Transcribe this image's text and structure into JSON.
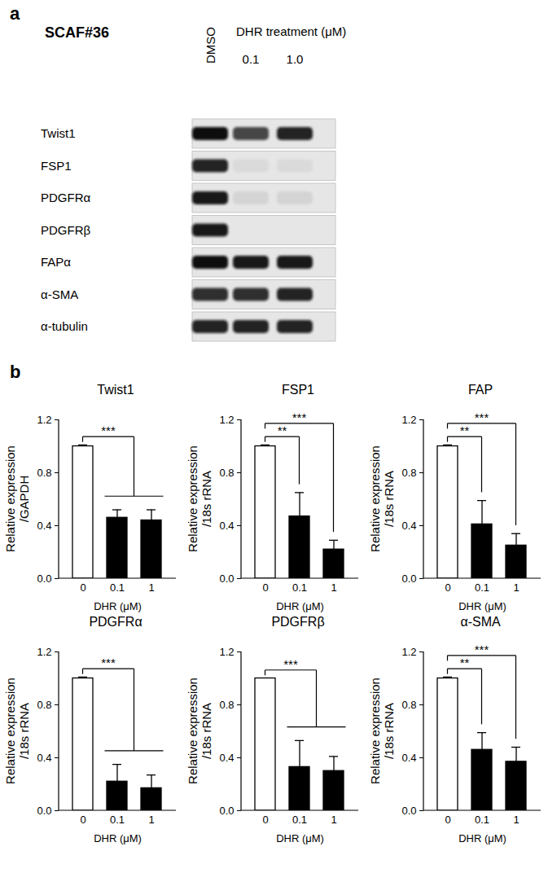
{
  "panel_a": {
    "label": "a",
    "title": "SCAF#36",
    "control_lane": "DMSO",
    "treatment_label": "DHR treatment (μM)",
    "treatment_lanes": [
      "0.1",
      "1.0"
    ],
    "rows": [
      {
        "label": "Twist1",
        "bands": [
          1.0,
          0.75,
          0.9
        ]
      },
      {
        "label": "FSP1",
        "bands": [
          0.9,
          0.05,
          0.05
        ]
      },
      {
        "label": "PDGFRα",
        "bands": [
          0.95,
          0.08,
          0.08
        ]
      },
      {
        "label": "PDGFRβ",
        "bands": [
          0.95,
          0.0,
          0.0
        ]
      },
      {
        "label": "FAPα",
        "bands": [
          1.0,
          0.95,
          0.95
        ]
      },
      {
        "label": "α-SMA",
        "bands": [
          0.85,
          0.85,
          0.9
        ]
      },
      {
        "label": "α-tubulin",
        "bands": [
          0.9,
          0.9,
          0.9
        ]
      }
    ]
  },
  "panel_b": {
    "label": "b"
  },
  "chart_data": [
    {
      "type": "bar",
      "title": "Twist1",
      "ylabel": [
        "Relative expression",
        "/GAPDH"
      ],
      "xlabel": "DHR (μM)",
      "categories": [
        "0",
        "0.1",
        "1"
      ],
      "values": [
        1.0,
        0.46,
        0.44
      ],
      "errors": [
        0.01,
        0.06,
        0.08
      ],
      "colors": [
        "#ffffff",
        "#000000",
        "#000000"
      ],
      "ylim": [
        0,
        1.2
      ],
      "yticks": [
        {
          "value": 0,
          "label": "0.0"
        },
        0.4,
        0.8,
        1.2
      ],
      "significance": [
        {
          "from": "0",
          "to": [
            "0.1",
            "1"
          ],
          "label": "***"
        }
      ]
    },
    {
      "type": "bar",
      "title": "FSP1",
      "ylabel": [
        "Relative expression",
        "/18s rRNA"
      ],
      "xlabel": "DHR (μM)",
      "categories": [
        "0",
        "0.1",
        "1"
      ],
      "values": [
        1.0,
        0.47,
        0.22
      ],
      "errors": [
        0.01,
        0.18,
        0.07
      ],
      "colors": [
        "#ffffff",
        "#000000",
        "#000000"
      ],
      "ylim": [
        0,
        1.2
      ],
      "yticks": [
        {
          "value": 0,
          "label": "0.0"
        },
        0.4,
        0.8,
        1.2
      ],
      "significance": [
        {
          "from": "0",
          "to": [
            "0.1"
          ],
          "label": "**"
        },
        {
          "from": "0",
          "to": [
            "1"
          ],
          "label": "***"
        }
      ]
    },
    {
      "type": "bar",
      "title": "FAP",
      "ylabel": [
        "Relative expression",
        "/18s rRNA"
      ],
      "xlabel": "DHR (μM)",
      "categories": [
        "0",
        "0.1",
        "1"
      ],
      "values": [
        1.0,
        0.41,
        0.25
      ],
      "errors": [
        0.01,
        0.18,
        0.09
      ],
      "colors": [
        "#ffffff",
        "#000000",
        "#000000"
      ],
      "ylim": [
        0,
        1.2
      ],
      "yticks": [
        {
          "value": 0,
          "label": "0.0"
        },
        0.4,
        0.8,
        1.2
      ],
      "significance": [
        {
          "from": "0",
          "to": [
            "0.1"
          ],
          "label": "**"
        },
        {
          "from": "0",
          "to": [
            "1"
          ],
          "label": "***"
        }
      ]
    },
    {
      "type": "bar",
      "title": "PDGFRα",
      "ylabel": [
        "Relative expression",
        "/18s rRNA"
      ],
      "xlabel": "DHR (μM)",
      "categories": [
        "0",
        "0.1",
        "1"
      ],
      "values": [
        1.0,
        0.22,
        0.17
      ],
      "errors": [
        0.01,
        0.13,
        0.1
      ],
      "colors": [
        "#ffffff",
        "#000000",
        "#000000"
      ],
      "ylim": [
        0,
        1.2
      ],
      "yticks": [
        {
          "value": 0,
          "label": "0.0"
        },
        0.4,
        0.8,
        1.2
      ],
      "significance": [
        {
          "from": "0",
          "to": [
            "0.1",
            "1"
          ],
          "label": "***"
        }
      ]
    },
    {
      "type": "bar",
      "title": "PDGFRβ",
      "ylabel": [
        "Relative expression",
        "/18s rRNA"
      ],
      "xlabel": "DHR (μM)",
      "categories": [
        "0",
        "0.1",
        "1"
      ],
      "values": [
        1.0,
        0.33,
        0.3
      ],
      "errors": [
        0.0,
        0.2,
        0.11
      ],
      "colors": [
        "#ffffff",
        "#000000",
        "#000000"
      ],
      "ylim": [
        0,
        1.2
      ],
      "yticks": [
        {
          "value": 0,
          "label": "0.0"
        },
        0.4,
        0.8,
        1.2
      ],
      "significance": [
        {
          "from": "0",
          "to": [
            "0.1",
            "1"
          ],
          "label": "***"
        }
      ]
    },
    {
      "type": "bar",
      "title": "α-SMA",
      "ylabel": [
        "Relative expression",
        "/18s rRNA"
      ],
      "xlabel": "DHR (μM)",
      "categories": [
        "0",
        "0.1",
        "1"
      ],
      "values": [
        1.0,
        0.46,
        0.37
      ],
      "errors": [
        0.01,
        0.13,
        0.11
      ],
      "colors": [
        "#ffffff",
        "#000000",
        "#000000"
      ],
      "ylim": [
        0,
        1.2
      ],
      "yticks": [
        {
          "value": 0,
          "label": "0.0"
        },
        0.4,
        0.8,
        1.2
      ],
      "significance": [
        {
          "from": "0",
          "to": [
            "0.1"
          ],
          "label": "**"
        },
        {
          "from": "0",
          "to": [
            "1"
          ],
          "label": "***"
        }
      ]
    }
  ]
}
